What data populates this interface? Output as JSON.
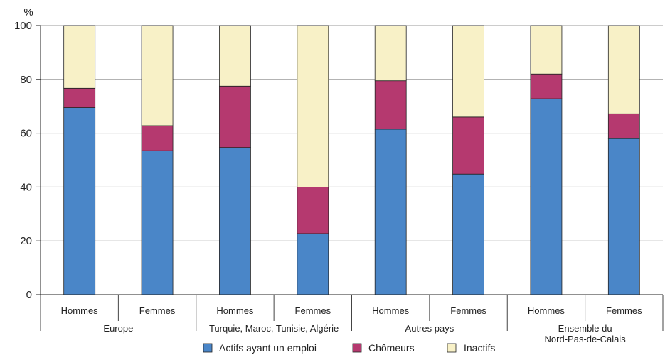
{
  "chart_data": {
    "type": "bar",
    "stacked": true,
    "ylabel": "%",
    "ylim": [
      0,
      100
    ],
    "yticks": [
      0,
      20,
      40,
      60,
      80,
      100
    ],
    "grid": true,
    "legend_position": "bottom",
    "categories": [
      "Hommes",
      "Femmes",
      "Hommes",
      "Femmes",
      "Hommes",
      "Femmes",
      "Hommes",
      "Femmes"
    ],
    "groups": [
      {
        "lines": [
          "Europe"
        ]
      },
      {
        "lines": [
          "Turquie, Maroc, Tunisie, Algérie"
        ]
      },
      {
        "lines": [
          "Autres pays"
        ]
      },
      {
        "lines": [
          "Ensemble du",
          "Nord-Pas-de-Calais"
        ]
      }
    ],
    "series": [
      {
        "name": "Actifs ayant un emploi",
        "color": "#4a86c8",
        "values": [
          69.5,
          53.5,
          54.7,
          22.7,
          61.5,
          44.8,
          72.8,
          58.0
        ]
      },
      {
        "name": "Chômeurs",
        "color": "#b5396f",
        "values": [
          7.2,
          9.3,
          22.8,
          17.3,
          18.0,
          21.2,
          9.2,
          9.2
        ]
      },
      {
        "name": "Inactifs",
        "color": "#f8f1c7",
        "values": [
          23.3,
          37.2,
          22.5,
          60.0,
          20.5,
          34.0,
          18.0,
          32.8
        ]
      }
    ]
  }
}
